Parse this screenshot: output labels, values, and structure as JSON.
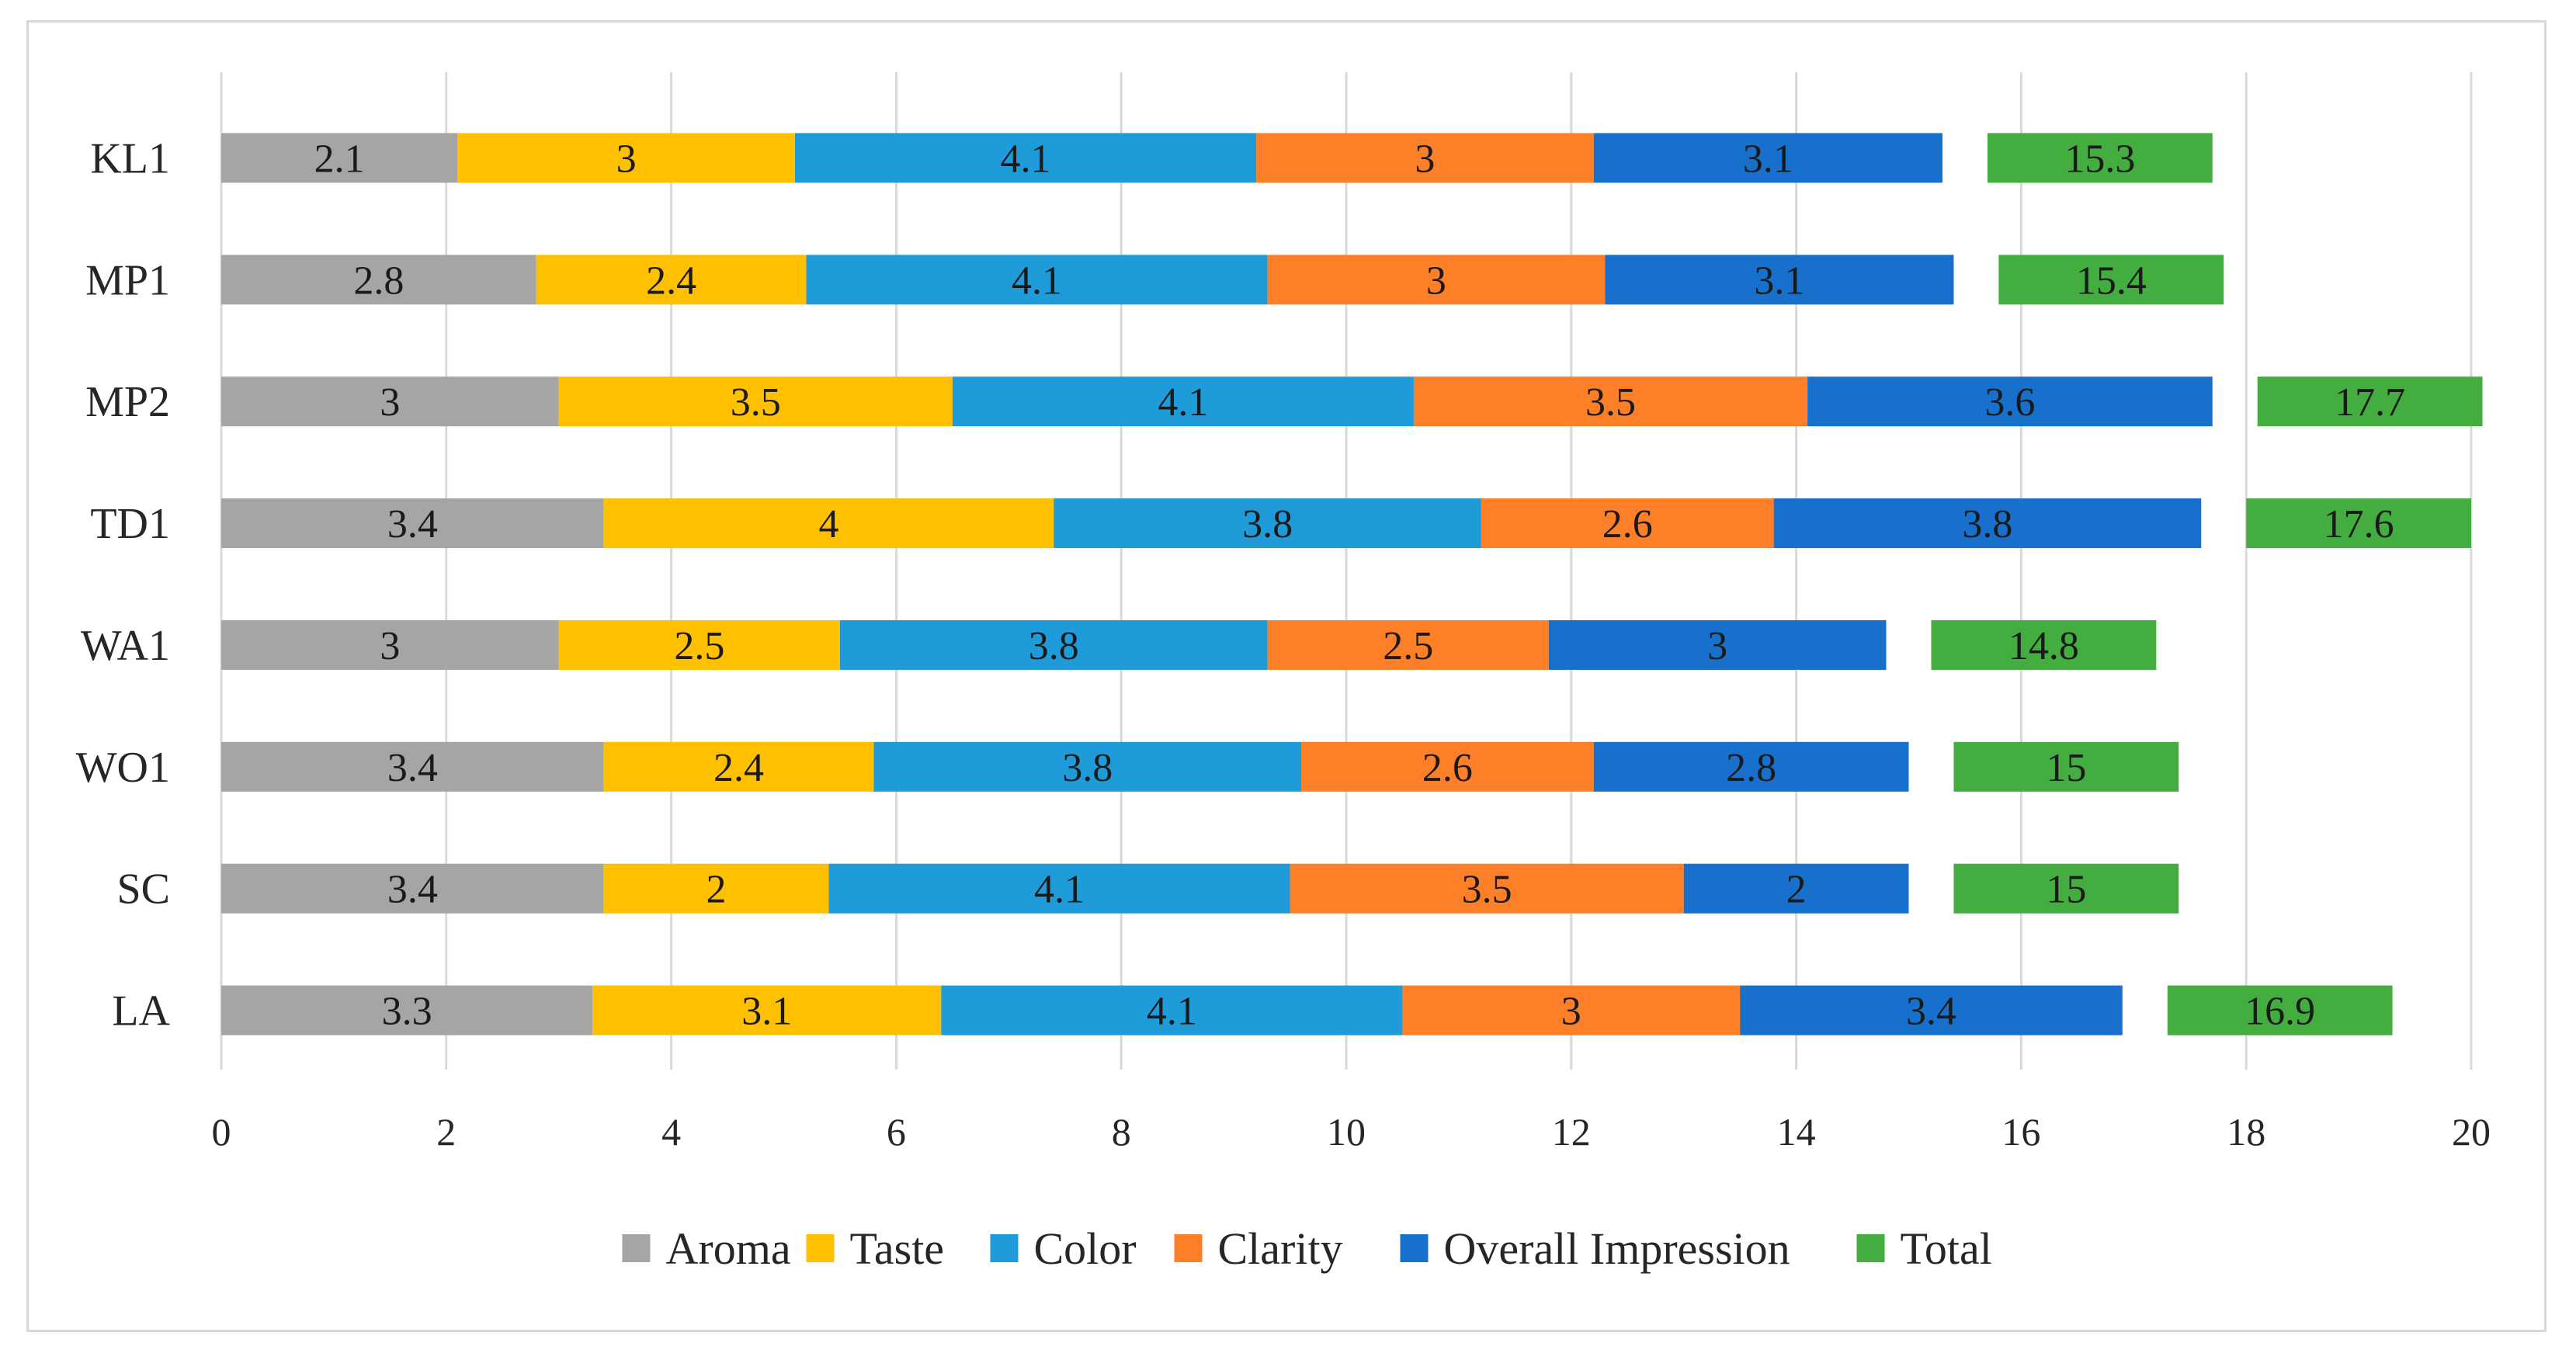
{
  "chart_data": {
    "type": "bar",
    "orientation": "horizontal",
    "stacked": true,
    "title": "",
    "xlabel": "",
    "ylabel": "",
    "xlim": [
      0,
      20
    ],
    "x_ticks": [
      "0",
      "2",
      "4",
      "6",
      "8",
      "10",
      "12",
      "14",
      "16",
      "18",
      "20"
    ],
    "grid": "vertical",
    "legend_position": "bottom",
    "categories": [
      "KL1",
      "MP1",
      "MP2",
      "TD1",
      "WA1",
      "WO1",
      "SC",
      "LA"
    ],
    "series": [
      {
        "name": "Aroma",
        "color": "#a5a5a5",
        "values": [
          2.1,
          2.8,
          3,
          3.4,
          3,
          3.4,
          3.4,
          3.3
        ]
      },
      {
        "name": "Taste",
        "color": "#ffc000",
        "values": [
          3,
          2.4,
          3.5,
          4,
          2.5,
          2.4,
          2,
          3.1
        ]
      },
      {
        "name": "Color",
        "color": "#1f9bd9",
        "values": [
          4.1,
          4.1,
          4.1,
          3.8,
          3.8,
          3.8,
          4.1,
          4.1
        ]
      },
      {
        "name": "Clarity",
        "color": "#fd7f27",
        "values": [
          3,
          3,
          3.5,
          2.6,
          2.5,
          2.6,
          3.5,
          3
        ]
      },
      {
        "name": "Overall Impression",
        "color": "#1670cc",
        "values": [
          3.1,
          3.1,
          3.6,
          3.8,
          3,
          2.8,
          2,
          3.4
        ]
      },
      {
        "name": "Total",
        "color": "#44ad3f",
        "values": [
          15.3,
          15.4,
          17.7,
          17.6,
          14.8,
          15,
          15,
          16.9
        ]
      }
    ],
    "data_labels": [
      [
        "2.1",
        "3",
        "4.1",
        "3",
        "3.1",
        "15.3"
      ],
      [
        "2.8",
        "2.4",
        "4.1",
        "3",
        "3.1",
        "15.4"
      ],
      [
        "3",
        "3.5",
        "4.1",
        "3.5",
        "3.6",
        "17.7"
      ],
      [
        "3.4",
        "4",
        "3.8",
        "2.6",
        "3.8",
        "17.6"
      ],
      [
        "3",
        "2.5",
        "3.8",
        "2.5",
        "3",
        "14.8"
      ],
      [
        "3.4",
        "2.4",
        "3.8",
        "2.6",
        "2.8",
        "15"
      ],
      [
        "3.4",
        "2",
        "4.1",
        "3.5",
        "2",
        "15"
      ],
      [
        "3.3",
        "3.1",
        "4.1",
        "3",
        "3.4",
        "16.9"
      ]
    ]
  }
}
